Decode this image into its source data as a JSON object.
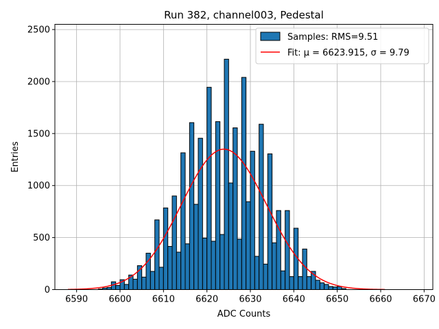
{
  "chart_data": {
    "type": "bar",
    "title": "Run 382, channel003, Pedestal",
    "xlabel": "ADC Counts",
    "ylabel": "Entries",
    "xlim": [
      6585,
      6672
    ],
    "ylim": [
      0,
      2550
    ],
    "xticks": [
      6590,
      6600,
      6610,
      6620,
      6630,
      6640,
      6650,
      6660,
      6670
    ],
    "yticks": [
      0,
      500,
      1000,
      1500,
      2000,
      2500
    ],
    "grid": true,
    "legend_position": "top-right",
    "histogram": {
      "name": "Samples: RMS=9.51",
      "color": "#1f77b4",
      "bin_edges": [
        6595.0,
        6596.0,
        6597.0,
        6598.0,
        6599.0,
        6600.0,
        6601.0,
        6602.0,
        6603.0,
        6604.0,
        6605.0,
        6606.0,
        6607.0,
        6608.0,
        6609.0,
        6610.0,
        6611.0,
        6612.0,
        6613.0,
        6614.0,
        6615.0,
        6616.0,
        6617.0,
        6618.0,
        6619.0,
        6620.0,
        6621.0,
        6622.0,
        6623.0,
        6624.0,
        6625.0,
        6626.0,
        6627.0,
        6628.0,
        6629.0,
        6630.0,
        6631.0,
        6632.0,
        6633.0,
        6634.0,
        6635.0,
        6636.0,
        6637.0,
        6638.0,
        6639.0,
        6640.0,
        6641.0,
        6642.0,
        6643.0,
        6644.0,
        6645.0,
        6646.0,
        6647.0,
        6648.0,
        6649.0,
        6650.0,
        6651.0,
        6652.0
      ],
      "counts": [
        5,
        15,
        20,
        75,
        40,
        95,
        50,
        140,
        100,
        230,
        120,
        350,
        175,
        670,
        215,
        785,
        415,
        900,
        360,
        1315,
        440,
        1605,
        820,
        1455,
        495,
        1945,
        465,
        1615,
        530,
        2215,
        1025,
        1555,
        485,
        2040,
        845,
        1330,
        320,
        1590,
        245,
        1305,
        450,
        760,
        180,
        760,
        125,
        590,
        125,
        390,
        125,
        175,
        90,
        65,
        50,
        30,
        25,
        30,
        10
      ]
    },
    "fit": {
      "name": "Fit: μ = 6623.915, σ = 9.79",
      "color": "#ff0000",
      "mu": 6623.915,
      "sigma": 9.79,
      "amplitude": 1350,
      "x_range": [
        6588,
        6661
      ]
    }
  }
}
